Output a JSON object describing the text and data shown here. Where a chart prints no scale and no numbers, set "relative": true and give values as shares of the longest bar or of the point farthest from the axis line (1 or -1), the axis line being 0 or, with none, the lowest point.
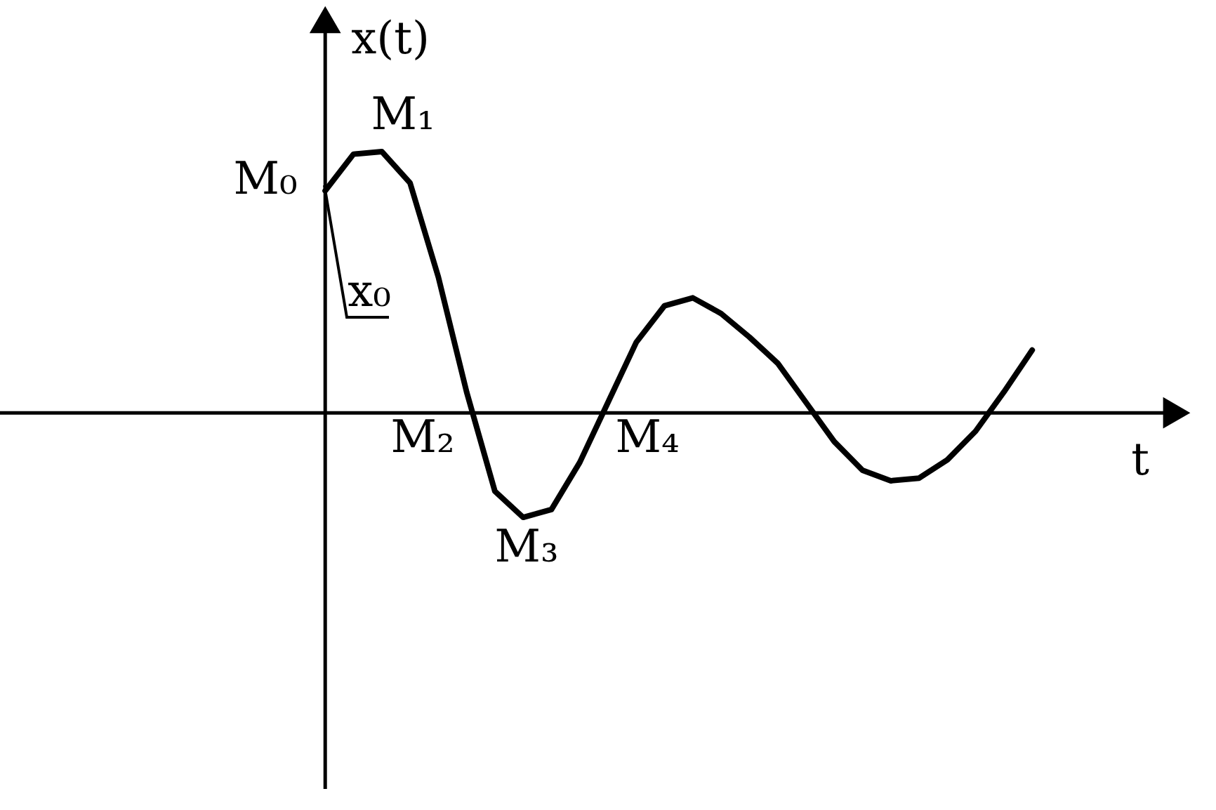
{
  "chart_data": {
    "type": "line",
    "relative": true,
    "xlabel": "t",
    "ylabel": "x(t)",
    "color": "#000000",
    "categories": [
      null,
      null,
      null,
      null,
      null,
      null,
      null,
      null,
      null,
      null,
      null,
      null,
      null,
      null,
      null,
      null,
      null,
      null,
      null,
      null,
      null,
      null,
      null,
      null,
      null,
      null
    ],
    "values": [
      0.85,
      0.99,
      1,
      0.88,
      0.52,
      0.08,
      -0.3,
      -0.4,
      -0.37,
      -0.19,
      0.04,
      0.27,
      0.41,
      0.44,
      0.38,
      0.29,
      0.19,
      0.04,
      -0.11,
      -0.22,
      -0.26,
      -0.25,
      -0.18,
      -0.07,
      0.08,
      0.24
    ],
    "annotations": [
      "M₀",
      "M₁",
      "M₂",
      "M₃",
      "M₄",
      "x₀"
    ]
  }
}
